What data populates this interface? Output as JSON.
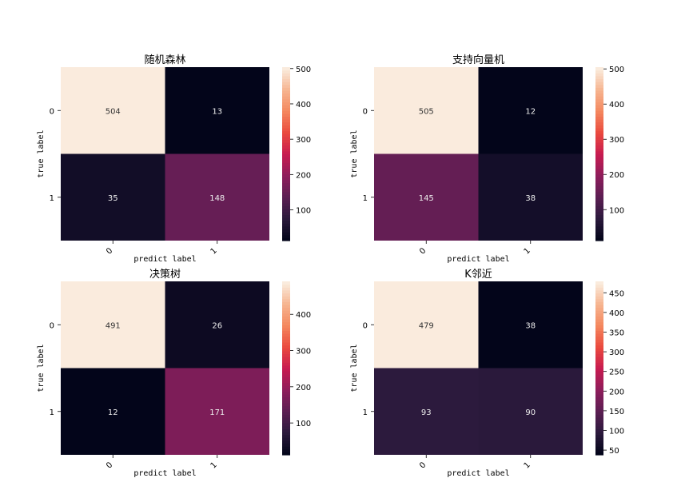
{
  "chart_data": [
    {
      "type": "heatmap",
      "title": "随机森林",
      "xlabel": "predict label",
      "ylabel": "true label",
      "x_ticks": [
        "0",
        "1"
      ],
      "y_ticks": [
        "0",
        "1"
      ],
      "values": [
        [
          504,
          13
        ],
        [
          35,
          148
        ]
      ],
      "colorbar": {
        "range": [
          13,
          504
        ],
        "ticks": [
          100,
          200,
          300,
          400,
          500
        ]
      }
    },
    {
      "type": "heatmap",
      "title": "支持向量机",
      "xlabel": "predict label",
      "ylabel": "true label",
      "x_ticks": [
        "0",
        "1"
      ],
      "y_ticks": [
        "0",
        "1"
      ],
      "values": [
        [
          505,
          12
        ],
        [
          145,
          38
        ]
      ],
      "colorbar": {
        "range": [
          12,
          505
        ],
        "ticks": [
          100,
          200,
          300,
          400,
          500
        ]
      }
    },
    {
      "type": "heatmap",
      "title": "决策树",
      "xlabel": "predict label",
      "ylabel": "true label",
      "x_ticks": [
        "0",
        "1"
      ],
      "y_ticks": [
        "0",
        "1"
      ],
      "values": [
        [
          491,
          26
        ],
        [
          12,
          171
        ]
      ],
      "colorbar": {
        "range": [
          12,
          491
        ],
        "ticks": [
          100,
          200,
          300,
          400
        ]
      }
    },
    {
      "type": "heatmap",
      "title": "K邻近",
      "xlabel": "predict label",
      "ylabel": "true label",
      "x_ticks": [
        "0",
        "1"
      ],
      "y_ticks": [
        "0",
        "1"
      ],
      "values": [
        [
          479,
          38
        ],
        [
          93,
          90
        ]
      ],
      "colorbar": {
        "range": [
          38,
          479
        ],
        "ticks": [
          50,
          100,
          150,
          200,
          250,
          300,
          350,
          400,
          450
        ]
      }
    }
  ],
  "colormap": [
    "#03051a",
    "#2c1a3d",
    "#5c1e53",
    "#8f1d5b",
    "#c81b50",
    "#ea4a3e",
    "#f4875e",
    "#f6b48f",
    "#faebdd"
  ]
}
